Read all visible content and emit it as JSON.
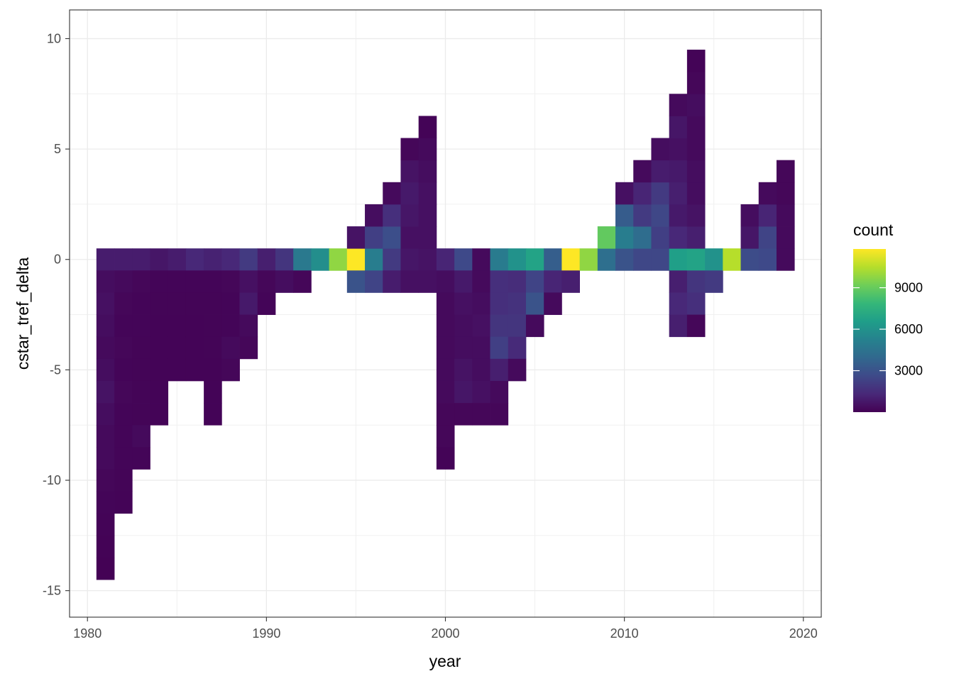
{
  "chart_data": {
    "type": "heatmap",
    "title": "",
    "xlabel": "year",
    "ylabel": "cstar_tref_delta",
    "xlim": [
      1979,
      2021
    ],
    "ylim": [
      -16.2,
      11.3
    ],
    "x_ticks": [
      1980,
      1990,
      2000,
      2010,
      2020
    ],
    "y_ticks": [
      10,
      5,
      0,
      -5,
      -10,
      -15
    ],
    "y_tick_labels": [
      "10",
      "5",
      "0",
      "-5",
      "-10",
      "-15"
    ],
    "bin_width_x": 1,
    "bin_height_y": 1,
    "grid": true,
    "legend": {
      "title": "count",
      "position": "right",
      "min": 1,
      "max": 11800,
      "ticks": [
        3000,
        6000,
        9000
      ],
      "tick_labels": [
        "3000",
        "6000",
        "9000"
      ],
      "colormap": [
        "#440154",
        "#482878",
        "#3e4a89",
        "#31688e",
        "#26828e",
        "#1f9e89",
        "#35b779",
        "#6ece58",
        "#b5de2b",
        "#fde725"
      ]
    },
    "bins": [
      [
        1981,
        0,
        900
      ],
      [
        1981,
        -1,
        400
      ],
      [
        1981,
        -2,
        500
      ],
      [
        1981,
        -3,
        400
      ],
      [
        1981,
        -4,
        300
      ],
      [
        1981,
        -5,
        400
      ],
      [
        1981,
        -6,
        600
      ],
      [
        1981,
        -7,
        400
      ],
      [
        1981,
        -8,
        300
      ],
      [
        1981,
        -9,
        300
      ],
      [
        1981,
        -10,
        200
      ],
      [
        1981,
        -11,
        150
      ],
      [
        1981,
        -12,
        100
      ],
      [
        1981,
        -13,
        80
      ],
      [
        1981,
        -14,
        50
      ],
      [
        1982,
        0,
        900
      ],
      [
        1982,
        -1,
        300
      ],
      [
        1982,
        -2,
        200
      ],
      [
        1982,
        -3,
        150
      ],
      [
        1982,
        -4,
        200
      ],
      [
        1982,
        -5,
        150
      ],
      [
        1982,
        -6,
        200
      ],
      [
        1982,
        -7,
        150
      ],
      [
        1982,
        -8,
        150
      ],
      [
        1982,
        -9,
        150
      ],
      [
        1982,
        -10,
        120
      ],
      [
        1982,
        -11,
        100
      ],
      [
        1983,
        0,
        900
      ],
      [
        1983,
        -1,
        200
      ],
      [
        1983,
        -2,
        150
      ],
      [
        1983,
        -3,
        150
      ],
      [
        1983,
        -4,
        120
      ],
      [
        1983,
        -5,
        120
      ],
      [
        1983,
        -6,
        120
      ],
      [
        1983,
        -7,
        120
      ],
      [
        1983,
        -8,
        300
      ],
      [
        1983,
        -9,
        150
      ],
      [
        1984,
        0,
        700
      ],
      [
        1984,
        -1,
        150
      ],
      [
        1984,
        -2,
        120
      ],
      [
        1984,
        -3,
        100
      ],
      [
        1984,
        -4,
        100
      ],
      [
        1984,
        -5,
        100
      ],
      [
        1984,
        -6,
        100
      ],
      [
        1984,
        -7,
        100
      ],
      [
        1985,
        0,
        900
      ],
      [
        1985,
        -1,
        150
      ],
      [
        1985,
        -2,
        120
      ],
      [
        1985,
        -3,
        100
      ],
      [
        1985,
        -4,
        100
      ],
      [
        1985,
        -5,
        100
      ],
      [
        1986,
        0,
        1300
      ],
      [
        1986,
        -1,
        150
      ],
      [
        1986,
        -2,
        120
      ],
      [
        1986,
        -3,
        100
      ],
      [
        1986,
        -4,
        100
      ],
      [
        1986,
        -5,
        100
      ],
      [
        1987,
        0,
        1100
      ],
      [
        1987,
        -1,
        150
      ],
      [
        1987,
        -2,
        120
      ],
      [
        1987,
        -3,
        120
      ],
      [
        1987,
        -4,
        120
      ],
      [
        1987,
        -5,
        100
      ],
      [
        1987,
        -6,
        100
      ],
      [
        1987,
        -7,
        100
      ],
      [
        1988,
        0,
        1300
      ],
      [
        1988,
        -1,
        200
      ],
      [
        1988,
        -2,
        150
      ],
      [
        1988,
        -3,
        150
      ],
      [
        1988,
        -4,
        300
      ],
      [
        1988,
        -5,
        200
      ],
      [
        1989,
        0,
        2000
      ],
      [
        1989,
        -1,
        500
      ],
      [
        1989,
        -2,
        800
      ],
      [
        1989,
        -3,
        300
      ],
      [
        1989,
        -4,
        200
      ],
      [
        1990,
        0,
        1000
      ],
      [
        1990,
        -1,
        200
      ],
      [
        1990,
        -2,
        150
      ],
      [
        1991,
        0,
        1800
      ],
      [
        1991,
        -1,
        400
      ],
      [
        1992,
        0,
        4800
      ],
      [
        1992,
        -1,
        200
      ],
      [
        1993,
        0,
        5800
      ],
      [
        1994,
        0,
        9800
      ],
      [
        1995,
        0,
        11800
      ],
      [
        1995,
        1,
        600
      ],
      [
        1995,
        -1,
        3000
      ],
      [
        1996,
        0,
        5000
      ],
      [
        1996,
        1,
        2200
      ],
      [
        1996,
        2,
        400
      ],
      [
        1996,
        -1,
        2400
      ],
      [
        1997,
        0,
        2000
      ],
      [
        1997,
        1,
        2800
      ],
      [
        1997,
        2,
        1600
      ],
      [
        1997,
        3,
        300
      ],
      [
        1997,
        -1,
        900
      ],
      [
        1998,
        0,
        700
      ],
      [
        1998,
        1,
        500
      ],
      [
        1998,
        2,
        700
      ],
      [
        1998,
        3,
        800
      ],
      [
        1998,
        4,
        600
      ],
      [
        1998,
        5,
        200
      ],
      [
        1998,
        -1,
        500
      ],
      [
        1999,
        0,
        600
      ],
      [
        1999,
        1,
        500
      ],
      [
        1999,
        2,
        500
      ],
      [
        1999,
        3,
        500
      ],
      [
        1999,
        4,
        400
      ],
      [
        1999,
        5,
        300
      ],
      [
        1999,
        6,
        100
      ],
      [
        1999,
        -1,
        500
      ],
      [
        2000,
        0,
        1200
      ],
      [
        2000,
        -1,
        400
      ],
      [
        2000,
        -2,
        300
      ],
      [
        2000,
        -3,
        300
      ],
      [
        2000,
        -4,
        300
      ],
      [
        2000,
        -5,
        300
      ],
      [
        2000,
        -6,
        300
      ],
      [
        2000,
        -7,
        200
      ],
      [
        2000,
        -8,
        200
      ],
      [
        2000,
        -9,
        100
      ],
      [
        2001,
        0,
        2600
      ],
      [
        2001,
        -1,
        800
      ],
      [
        2001,
        -2,
        500
      ],
      [
        2001,
        -3,
        400
      ],
      [
        2001,
        -4,
        400
      ],
      [
        2001,
        -5,
        600
      ],
      [
        2001,
        -6,
        700
      ],
      [
        2001,
        -7,
        200
      ],
      [
        2002,
        0,
        300
      ],
      [
        2002,
        -1,
        300
      ],
      [
        2002,
        -2,
        400
      ],
      [
        2002,
        -3,
        500
      ],
      [
        2002,
        -4,
        400
      ],
      [
        2002,
        -5,
        400
      ],
      [
        2002,
        -6,
        500
      ],
      [
        2002,
        -7,
        200
      ],
      [
        2003,
        0,
        4900
      ],
      [
        2003,
        -1,
        1600
      ],
      [
        2003,
        -2,
        1600
      ],
      [
        2003,
        -3,
        1800
      ],
      [
        2003,
        -4,
        2200
      ],
      [
        2003,
        -5,
        1000
      ],
      [
        2003,
        -6,
        300
      ],
      [
        2003,
        -7,
        200
      ],
      [
        2004,
        0,
        6000
      ],
      [
        2004,
        -1,
        1500
      ],
      [
        2004,
        -2,
        1700
      ],
      [
        2004,
        -3,
        1800
      ],
      [
        2004,
        -4,
        1400
      ],
      [
        2004,
        -5,
        300
      ],
      [
        2005,
        0,
        6800
      ],
      [
        2005,
        -1,
        2400
      ],
      [
        2005,
        -2,
        3000
      ],
      [
        2005,
        -3,
        300
      ],
      [
        2006,
        0,
        3500
      ],
      [
        2006,
        -1,
        1200
      ],
      [
        2006,
        -2,
        300
      ],
      [
        2007,
        0,
        11800
      ],
      [
        2007,
        -1,
        1000
      ],
      [
        2008,
        0,
        9800
      ],
      [
        2009,
        0,
        4300
      ],
      [
        2009,
        1,
        8900
      ],
      [
        2010,
        0,
        3000
      ],
      [
        2010,
        1,
        5000
      ],
      [
        2010,
        2,
        3400
      ],
      [
        2010,
        3,
        500
      ],
      [
        2011,
        0,
        2500
      ],
      [
        2011,
        1,
        4200
      ],
      [
        2011,
        2,
        2000
      ],
      [
        2011,
        3,
        1200
      ],
      [
        2011,
        4,
        300
      ],
      [
        2012,
        0,
        2500
      ],
      [
        2012,
        1,
        2200
      ],
      [
        2012,
        2,
        2500
      ],
      [
        2012,
        3,
        2000
      ],
      [
        2012,
        4,
        900
      ],
      [
        2012,
        5,
        400
      ],
      [
        2013,
        0,
        6600
      ],
      [
        2013,
        1,
        1300
      ],
      [
        2013,
        2,
        800
      ],
      [
        2013,
        3,
        1000
      ],
      [
        2013,
        4,
        800
      ],
      [
        2013,
        5,
        500
      ],
      [
        2013,
        6,
        700
      ],
      [
        2013,
        7,
        300
      ],
      [
        2013,
        -1,
        1000
      ],
      [
        2013,
        -2,
        1300
      ],
      [
        2013,
        -3,
        1000
      ],
      [
        2014,
        0,
        6800
      ],
      [
        2014,
        1,
        1000
      ],
      [
        2014,
        2,
        600
      ],
      [
        2014,
        3,
        400
      ],
      [
        2014,
        4,
        400
      ],
      [
        2014,
        5,
        300
      ],
      [
        2014,
        6,
        300
      ],
      [
        2014,
        7,
        400
      ],
      [
        2014,
        8,
        200
      ],
      [
        2014,
        9,
        100
      ],
      [
        2014,
        -1,
        1800
      ],
      [
        2014,
        -2,
        1600
      ],
      [
        2014,
        -3,
        200
      ],
      [
        2015,
        0,
        6000
      ],
      [
        2015,
        -1,
        2000
      ],
      [
        2016,
        0,
        10500
      ],
      [
        2017,
        0,
        2700
      ],
      [
        2017,
        1,
        700
      ],
      [
        2017,
        2,
        400
      ],
      [
        2018,
        0,
        2600
      ],
      [
        2018,
        1,
        2400
      ],
      [
        2018,
        2,
        1200
      ],
      [
        2018,
        3,
        300
      ],
      [
        2019,
        0,
        300
      ],
      [
        2019,
        1,
        300
      ],
      [
        2019,
        2,
        300
      ],
      [
        2019,
        3,
        200
      ],
      [
        2019,
        4,
        200
      ]
    ]
  }
}
